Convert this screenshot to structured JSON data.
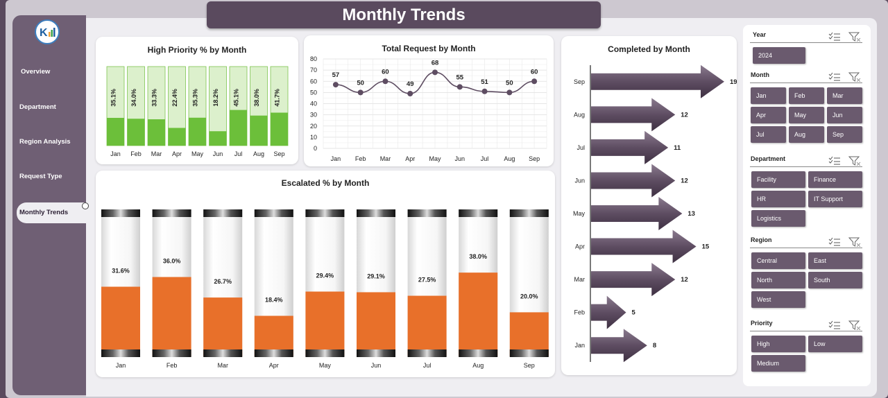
{
  "page_title": "Monthly Trends",
  "sidebar": {
    "items": [
      {
        "label": "Overview",
        "name": "sidebar-item-overview"
      },
      {
        "label": "Department",
        "name": "sidebar-item-department"
      },
      {
        "label": "Region Analysis",
        "name": "sidebar-item-region-analysis"
      },
      {
        "label": "Request Type",
        "name": "sidebar-item-request-type"
      },
      {
        "label": "Monthly Trends",
        "name": "sidebar-item-monthly-trends",
        "active": true
      }
    ]
  },
  "colors": {
    "sidebar": "#6f5f74",
    "title_bar": "#5a4a5e",
    "green_fill": "#6cbf3a",
    "green_bg": "#dcf0cc",
    "orange": "#e8702a",
    "arrow": "#5e4d62",
    "line": "#5e4d62",
    "slicer_button": "#6a5a6e"
  },
  "chart_data": [
    {
      "id": "high-priority",
      "type": "bar",
      "title": "High Priority % by Month",
      "categories": [
        "Jan",
        "Feb",
        "Mar",
        "Apr",
        "May",
        "Jun",
        "Jul",
        "Aug",
        "Sep"
      ],
      "values": [
        35.1,
        34.0,
        33.3,
        22.4,
        35.3,
        18.2,
        45.1,
        38.0,
        41.7
      ],
      "labels": [
        "35.1%",
        "34.0%",
        "33.3%",
        "22.4%",
        "35.3%",
        "18.2%",
        "45.1%",
        "38.0%",
        "41.7%"
      ],
      "ylim": [
        0,
        100
      ]
    },
    {
      "id": "total-request",
      "type": "line",
      "title": "Total Request by Month",
      "categories": [
        "Jan",
        "Feb",
        "Mar",
        "Apr",
        "May",
        "Jun",
        "Jul",
        "Aug",
        "Sep"
      ],
      "values": [
        57,
        50,
        60,
        49,
        68,
        55,
        51,
        50,
        60
      ],
      "yticks": [
        "0",
        "10",
        "20",
        "30",
        "40",
        "50",
        "60",
        "70",
        "80"
      ],
      "ylim": [
        0,
        80
      ],
      "grid": true
    },
    {
      "id": "completed",
      "type": "bar",
      "orientation": "horizontal",
      "title": "Completed by Month",
      "categories": [
        "Sep",
        "Aug",
        "Jul",
        "Jun",
        "May",
        "Apr",
        "Mar",
        "Feb",
        "Jan"
      ],
      "values": [
        19,
        12,
        11,
        12,
        13,
        15,
        12,
        5,
        8
      ]
    },
    {
      "id": "escalated",
      "type": "bar",
      "title": "Escalated % by Month",
      "categories": [
        "Jan",
        "Feb",
        "Mar",
        "Apr",
        "May",
        "Jun",
        "Jul",
        "Aug",
        "Sep"
      ],
      "values": [
        31.6,
        36.0,
        26.7,
        18.4,
        29.4,
        29.1,
        27.5,
        38.0,
        20.0
      ],
      "labels": [
        "31.6%",
        "36.0%",
        "26.7%",
        "18.4%",
        "29.4%",
        "29.1%",
        "27.5%",
        "38.0%",
        "20.0%"
      ],
      "ylim": [
        0,
        100
      ]
    }
  ],
  "slicers": {
    "year": {
      "header": "Year",
      "items": [
        "2024"
      ]
    },
    "month": {
      "header": "Month",
      "items": [
        "Jan",
        "Feb",
        "Mar",
        "Apr",
        "May",
        "Jun",
        "Jul",
        "Aug",
        "Sep"
      ]
    },
    "department": {
      "header": "Department",
      "items": [
        "Facility",
        "Finance",
        "HR",
        "IT Support",
        "Logistics"
      ]
    },
    "region": {
      "header": "Region",
      "items": [
        "Central",
        "East",
        "North",
        "South",
        "West"
      ]
    },
    "priority": {
      "header": "Priority",
      "items": [
        "High",
        "Low",
        "Medium"
      ]
    }
  },
  "icons": {
    "multi_select": "multi-select-icon",
    "clear_filter": "clear-filter-icon",
    "logo": "company-logo"
  }
}
